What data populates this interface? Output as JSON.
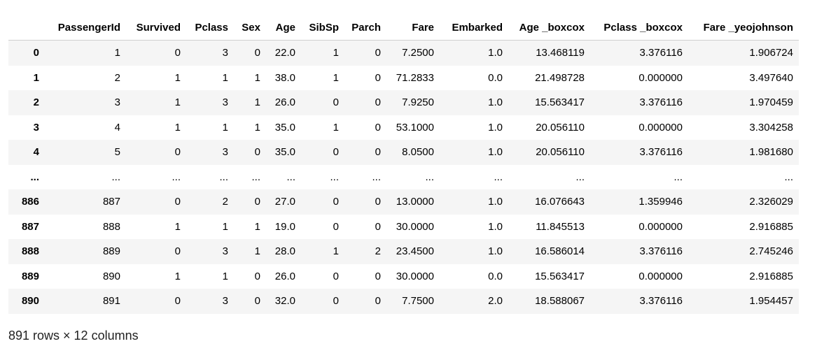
{
  "table": {
    "columns": [
      "",
      "PassengerId",
      "Survived",
      "Pclass",
      "Sex",
      "Age",
      "SibSp",
      "Parch",
      "Fare",
      "Embarked",
      "Age _boxcox",
      "Pclass _boxcox",
      "Fare _yeojohnson"
    ],
    "rows": [
      [
        "0",
        "1",
        "0",
        "3",
        "0",
        "22.0",
        "1",
        "0",
        "7.2500",
        "1.0",
        "13.468119",
        "3.376116",
        "1.906724"
      ],
      [
        "1",
        "2",
        "1",
        "1",
        "1",
        "38.0",
        "1",
        "0",
        "71.2833",
        "0.0",
        "21.498728",
        "0.000000",
        "3.497640"
      ],
      [
        "2",
        "3",
        "1",
        "3",
        "1",
        "26.0",
        "0",
        "0",
        "7.9250",
        "1.0",
        "15.563417",
        "3.376116",
        "1.970459"
      ],
      [
        "3",
        "4",
        "1",
        "1",
        "1",
        "35.0",
        "1",
        "0",
        "53.1000",
        "1.0",
        "20.056110",
        "0.000000",
        "3.304258"
      ],
      [
        "4",
        "5",
        "0",
        "3",
        "0",
        "35.0",
        "0",
        "0",
        "8.0500",
        "1.0",
        "20.056110",
        "3.376116",
        "1.981680"
      ],
      [
        "...",
        "...",
        "...",
        "...",
        "...",
        "...",
        "...",
        "...",
        "...",
        "...",
        "...",
        "...",
        "..."
      ],
      [
        "886",
        "887",
        "0",
        "2",
        "0",
        "27.0",
        "0",
        "0",
        "13.0000",
        "1.0",
        "16.076643",
        "1.359946",
        "2.326029"
      ],
      [
        "887",
        "888",
        "1",
        "1",
        "1",
        "19.0",
        "0",
        "0",
        "30.0000",
        "1.0",
        "11.845513",
        "0.000000",
        "2.916885"
      ],
      [
        "888",
        "889",
        "0",
        "3",
        "1",
        "28.0",
        "1",
        "2",
        "23.4500",
        "1.0",
        "16.586014",
        "3.376116",
        "2.745246"
      ],
      [
        "889",
        "890",
        "1",
        "1",
        "0",
        "26.0",
        "0",
        "0",
        "30.0000",
        "0.0",
        "15.563417",
        "0.000000",
        "2.916885"
      ],
      [
        "890",
        "891",
        "0",
        "3",
        "0",
        "32.0",
        "0",
        "0",
        "7.7500",
        "2.0",
        "18.588067",
        "3.376116",
        "1.954457"
      ]
    ]
  },
  "footer": {
    "shape_text": "891 rows × 12 columns"
  }
}
